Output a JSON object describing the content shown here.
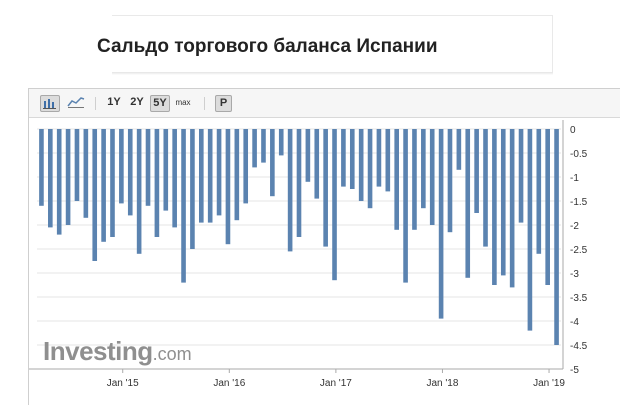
{
  "page": {
    "title": "Сальдо торгового баланса Испании"
  },
  "toolbar": {
    "bar_chart_icon": "bar-chart-icon",
    "line_chart_icon": "line-chart-icon",
    "range_1y": "1Y",
    "range_2y": "2Y",
    "range_5y": "5Y",
    "range_max": "max",
    "range_selected": "5Y",
    "print_label": "P"
  },
  "logo": {
    "main": "Investing",
    "suffix": ".com"
  },
  "colors": {
    "bar": "#5b83b0",
    "grid": "#e6e6e6",
    "axis": "#aaaaaa"
  },
  "chart_data": {
    "type": "bar",
    "title": "Сальдо торгового баланса Испании",
    "xlabel": "",
    "ylabel": "",
    "ylim": [
      -5,
      0
    ],
    "y_axis_side": "right",
    "y_ticks": [
      "0",
      "-0.5",
      "-1",
      "-1.5",
      "-2",
      "-2.5",
      "-3",
      "-3.5",
      "-4",
      "-4.5",
      "-5"
    ],
    "x_tick_labels": [
      "Jan '15",
      "Jan '16",
      "Jan '17",
      "Jan '18",
      "Jan '19"
    ],
    "grid": true,
    "legend": "none",
    "series": [
      {
        "values": [
          -1.6,
          -2.05,
          -2.2,
          -2.0,
          -1.5,
          -1.85,
          -2.75,
          -2.35,
          -2.25,
          -1.55,
          -1.8,
          -2.6,
          -1.6,
          -2.25,
          -1.7,
          -2.05,
          -3.2,
          -2.5,
          -1.95,
          -1.95,
          -1.8,
          -2.4,
          -1.9,
          -1.55,
          -0.8,
          -0.7,
          -1.4,
          -0.55,
          -2.55,
          -2.25,
          -1.1,
          -1.45,
          -2.45,
          -3.15,
          -1.2,
          -1.25,
          -1.5,
          -1.65,
          -1.2,
          -1.3,
          -2.1,
          -3.2,
          -2.1,
          -1.65,
          -2.0,
          -3.95,
          -2.15,
          -0.85,
          -3.1,
          -1.75,
          -2.45,
          -3.25,
          -3.05,
          -3.3,
          -1.95,
          -4.2,
          -2.6,
          -3.25,
          -4.5
        ]
      }
    ]
  }
}
